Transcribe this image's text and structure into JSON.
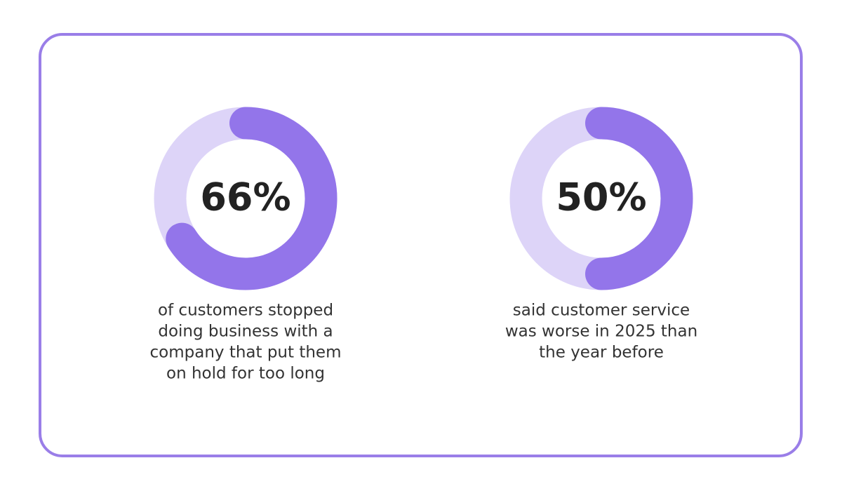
{
  "chart_data": [
    {
      "type": "donut",
      "value": 66,
      "value_label": "66%",
      "range": [
        0,
        100
      ],
      "color": "#9375ea",
      "track_color": "#ddd4f8",
      "caption": [
        "of customers stopped",
        "doing business with a",
        "company that put them",
        "on hold for too long"
      ]
    },
    {
      "type": "donut",
      "value": 50,
      "value_label": "50%",
      "range": [
        0,
        100
      ],
      "color": "#9375ea",
      "track_color": "#ddd4f8",
      "caption": [
        "said customer service",
        "was worse in 2025 than",
        "the year before"
      ]
    }
  ]
}
